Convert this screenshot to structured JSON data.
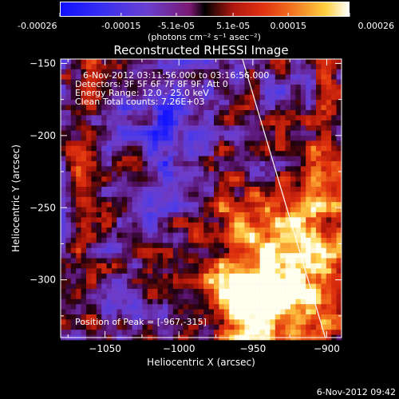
{
  "colorbar": {
    "ticks": [
      "-0.00026",
      "-0.00015",
      "-5.1e-05",
      "5.1e-05",
      "0.00015",
      "0.00026"
    ],
    "tick_values": [
      -0.00026,
      -0.00015,
      -5.1e-05,
      5.1e-05,
      0.00015,
      0.00026
    ],
    "unit": "(photons cm⁻² s⁻¹ asec⁻²)",
    "range": [
      -0.00026,
      0.00026
    ]
  },
  "info": {
    "time_range": "6-Nov-2012 03:11:56.000 to 03:16:56.000",
    "detectors": "Detectors: 3F 5F 6F 7F 8F 9F, Att 0",
    "energy": "Energy Range: 12.0 - 25.0 keV",
    "clean": "Clean     Total counts: 7.26E+03",
    "peak": "Position of Peak = [-967,-315]"
  },
  "footer": {
    "timestamp": "6-Nov-2012 09:42"
  },
  "colors": {
    "background": "#000000",
    "limb": "#ffffff",
    "text": "#ffffff"
  },
  "chart_data": {
    "type": "heatmap",
    "title": "Reconstructed RHESSI Image",
    "xlabel": "Heliocentric X (arcsec)",
    "ylabel": "Heliocentric Y (arcsec)",
    "xlim": [
      -1080,
      -890
    ],
    "ylim": [
      -340,
      -147
    ],
    "xticks": [
      -1050,
      -1000,
      -950,
      -900
    ],
    "yticks": [
      -300,
      -250,
      -200,
      -150
    ],
    "xtick_labels": [
      "−1050",
      "−1000",
      "−950",
      "−900"
    ],
    "ytick_labels": [
      "−300",
      "−250",
      "−200",
      "−150"
    ],
    "colormap": "blue-purple-red-yellow-white",
    "peak_position": [
      -967,
      -315
    ],
    "limb_line": {
      "x": [
        -957,
        -901
      ],
      "y": [
        -147,
        -340
      ]
    }
  }
}
